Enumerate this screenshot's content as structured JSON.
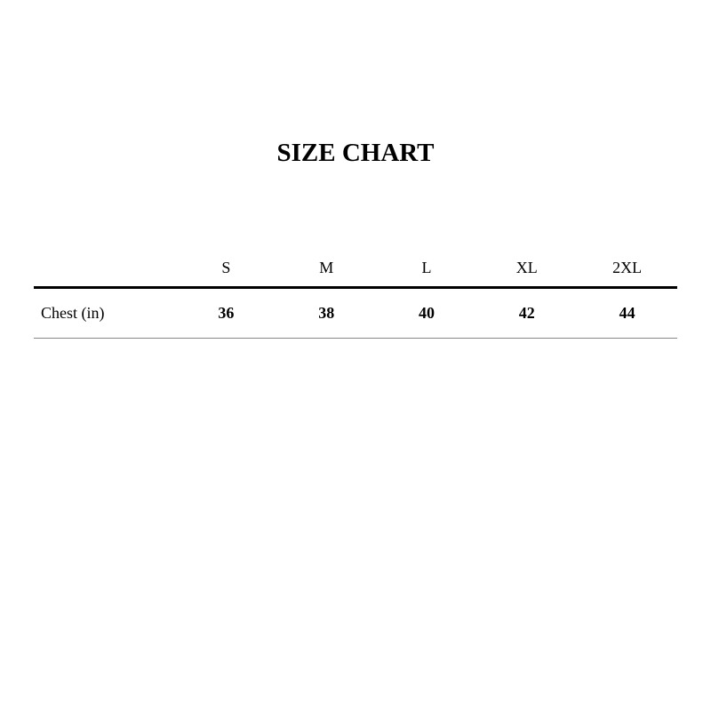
{
  "title": "SIZE CHART",
  "table": {
    "columns": [
      "S",
      "M",
      "L",
      "XL",
      "2XL"
    ],
    "rows": [
      {
        "label": "Chest (in)",
        "values": [
          "36",
          "38",
          "40",
          "42",
          "44"
        ]
      }
    ]
  }
}
